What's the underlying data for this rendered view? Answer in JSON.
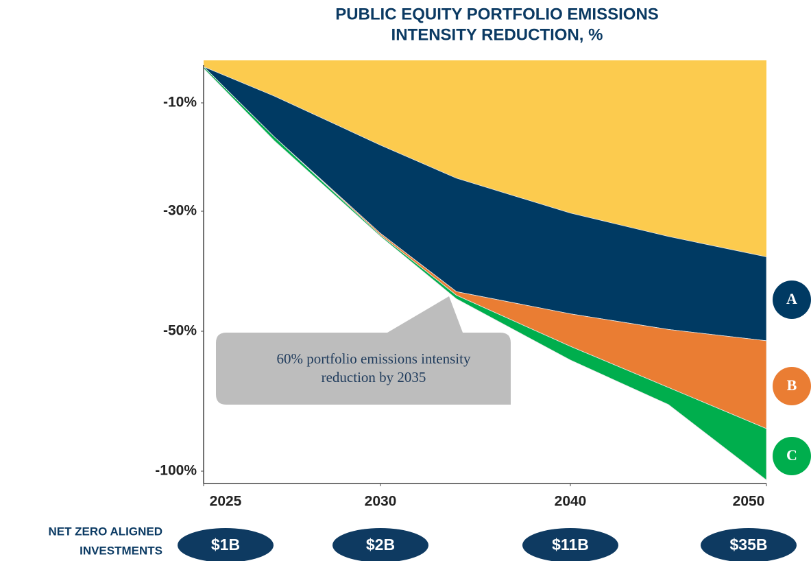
{
  "chart_data": {
    "type": "stacked_area",
    "title": [
      "PUBLIC EQUITY PORTFOLIO EMISSIONS",
      "INTENSITY REDUCTION, %"
    ],
    "x": [
      2025,
      2027,
      2030,
      2034,
      2040,
      2045,
      2050
    ],
    "xlim": [
      2025,
      2050
    ],
    "xticks": [
      2025,
      2030,
      2040,
      2050
    ],
    "ylim": [
      0,
      -103
    ],
    "yticks": [
      {
        "value": -10,
        "label": "-10%"
      },
      {
        "value": -30,
        "label": "-30%"
      },
      {
        "value": -50,
        "label": "-50%"
      },
      {
        "value": -100,
        "label": "-100%"
      }
    ],
    "series": [
      {
        "color": "#fccb4e",
        "values": [
          -1.5,
          -8.4,
          -17.8,
          -23.9,
          -30.3,
          -34.2,
          -37.6
        ]
      },
      {
        "name": "A",
        "color": "#003a63",
        "values": [
          0,
          -7.9,
          -15.9,
          -19.5,
          -16.8,
          -15.5,
          -15.8
        ]
      },
      {
        "name": "B",
        "color": "#ea7d33",
        "values": [
          0,
          0,
          -0.3,
          -0.6,
          -8.3,
          -20.4,
          -31.4
        ]
      },
      {
        "name": "C",
        "color": "#00ae4d",
        "values": [
          -0.4,
          -0.7,
          -0.2,
          -0.6,
          -4.9,
          -6.1,
          -18.2
        ]
      }
    ],
    "annotation": [
      "60% portfolio emissions intensity",
      "reduction by 2035"
    ]
  },
  "investments": {
    "label": [
      "NET ZERO ALIGNED",
      "INVESTMENTS"
    ],
    "amounts": [
      "$1B",
      "$2B",
      "$11B",
      "$35B"
    ]
  }
}
